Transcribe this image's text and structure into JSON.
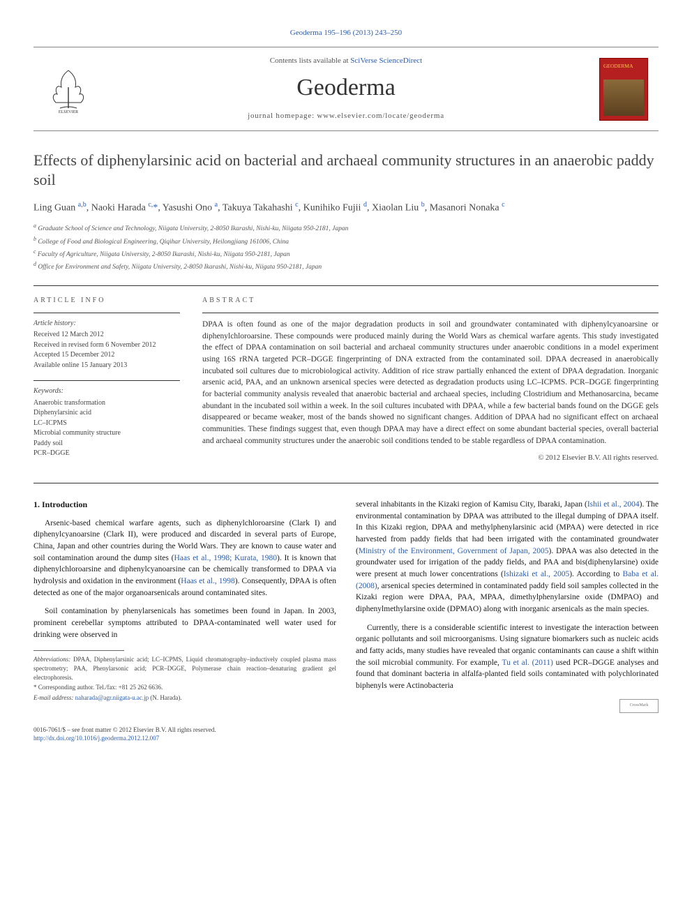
{
  "header": {
    "citation": "Geoderma 195–196 (2013) 243–250",
    "contents_prefix": "Contents lists available at ",
    "contents_link": "SciVerse ScienceDirect",
    "journal": "Geoderma",
    "homepage": "journal homepage: www.elsevier.com/locate/geoderma",
    "cover_title": "GEODERMA"
  },
  "article": {
    "title": "Effects of diphenylarsinic acid on bacterial and archaeal community structures in an anaerobic paddy soil",
    "authors_html": "Ling Guan <sup>a,b</sup>, Naoki Harada <sup>c,</sup><span class='corr'>*</span>, Yasushi Ono <sup>a</sup>, Takuya Takahashi <sup>c</sup>, Kunihiko Fujii <sup>d</sup>, Xiaolan Liu <sup>b</sup>, Masanori Nonaka <sup>c</sup>",
    "affiliations": [
      "a Graduate School of Science and Technology, Niigata University, 2-8050 Ikarashi, Nishi-ku, Niigata 950-2181, Japan",
      "b College of Food and Biological Engineering, Qiqihar University, Heilongjiang 161006, China",
      "c Faculty of Agriculture, Niigata University, 2-8050 Ikarashi, Nishi-ku, Niigata 950-2181, Japan",
      "d Office for Environment and Safety, Niigata University, 2-8050 Ikarashi, Nishi-ku, Niigata 950-2181, Japan"
    ]
  },
  "info": {
    "heading": "ARTICLE INFO",
    "history_label": "Article history:",
    "history": [
      "Received 12 March 2012",
      "Received in revised form 6 November 2012",
      "Accepted 15 December 2012",
      "Available online 15 January 2013"
    ],
    "keywords_label": "Keywords:",
    "keywords": [
      "Anaerobic transformation",
      "Diphenylarsinic acid",
      "LC–ICPMS",
      "Microbial community structure",
      "Paddy soil",
      "PCR–DGGE"
    ]
  },
  "abstract": {
    "heading": "ABSTRACT",
    "text": "DPAA is often found as one of the major degradation products in soil and groundwater contaminated with diphenylcyanoarsine or diphenylchloroarsine. These compounds were produced mainly during the World Wars as chemical warfare agents. This study investigated the effect of DPAA contamination on soil bacterial and archaeal community structures under anaerobic conditions in a model experiment using 16S rRNA targeted PCR–DGGE fingerprinting of DNA extracted from the contaminated soil. DPAA decreased in anaerobically incubated soil cultures due to microbiological activity. Addition of rice straw partially enhanced the extent of DPAA degradation. Inorganic arsenic acid, PAA, and an unknown arsenical species were detected as degradation products using LC–ICPMS. PCR–DGGE fingerprinting for bacterial community analysis revealed that anaerobic bacterial and archaeal species, including Clostridium and Methanosarcina, became abundant in the incubated soil within a week. In the soil cultures incubated with DPAA, while a few bacterial bands found on the DGGE gels disappeared or became weaker, most of the bands showed no significant changes. Addition of DPAA had no significant effect on archaeal communities. These findings suggest that, even though DPAA may have a direct effect on some abundant bacterial species, overall bacterial and archaeal community structures under the anaerobic soil conditions tended to be stable regardless of DPAA contamination.",
    "copyright": "© 2012 Elsevier B.V. All rights reserved."
  },
  "body": {
    "section_heading": "1. Introduction",
    "left_paragraphs": [
      "Arsenic-based chemical warfare agents, such as diphenylchloroarsine (Clark I) and diphenylcyanoarsine (Clark II), were produced and discarded in several parts of Europe, China, Japan and other countries during the World Wars. They are known to cause water and soil contamination around the dump sites (<span class='ref-link'>Haas et al., 1998; Kurata, 1980</span>). It is known that diphenylchloroarsine and diphenylcyanoarsine can be chemically transformed to DPAA via hydrolysis and oxidation in the environment (<span class='ref-link'>Haas et al., 1998</span>). Consequently, DPAA is often detected as one of the major organoarsenicals around contaminated sites.",
      "Soil contamination by phenylarsenicals has sometimes been found in Japan. In 2003, prominent cerebellar symptoms attributed to DPAA-contaminated well water used for drinking were observed in"
    ],
    "right_paragraphs": [
      "several inhabitants in the Kizaki region of Kamisu City, Ibaraki, Japan (<span class='ref-link'>Ishii et al., 2004</span>). The environmental contamination by DPAA was attributed to the illegal dumping of DPAA itself. In this Kizaki region, DPAA and methylphenylarsinic acid (MPAA) were detected in rice harvested from paddy fields that had been irrigated with the contaminated groundwater (<span class='ref-link'>Ministry of the Environment, Government of Japan, 2005</span>). DPAA was also detected in the groundwater used for irrigation of the paddy fields, and PAA and bis(diphenylarsine) oxide were present at much lower concentrations (<span class='ref-link'>Ishizaki et al., 2005</span>). According to <span class='ref-link'>Baba et al. (2008)</span>, arsenical species determined in contaminated paddy field soil samples collected in the Kizaki region were DPAA, PAA, MPAA, dimethylphenylarsine oxide (DMPAO) and diphenylmethylarsine oxide (DPMAO) along with inorganic arsenicals as the main species.",
      "Currently, there is a considerable scientific interest to investigate the interaction between organic pollutants and soil microorganisms. Using signature biomarkers such as nucleic acids and fatty acids, many studies have revealed that organic contaminants can cause a shift within the soil microbial community. For example, <span class='ref-link'>Tu et al. (2011)</span> used PCR–DGGE analyses and found that dominant bacteria in alfalfa-planted field soils contaminated with polychlorinated biphenyls were Actinobacteria"
    ]
  },
  "footnotes": {
    "abbrev_label": "Abbreviations:",
    "abbrev": " DPAA, Diphenylarsinic acid; LC–ICPMS, Liquid chromatography–inductively coupled plasma mass spectrometry; PAA, Phenylarsonic acid; PCR–DGGE, Polymerase chain reaction–denaturing gradient gel electrophoresis.",
    "corr": "* Corresponding author. Tel./fax: +81 25 262 6636.",
    "email_label": "E-mail address: ",
    "email": "naharada@agr.niigata-u.ac.jp",
    "email_suffix": " (N. Harada)."
  },
  "footer": {
    "left_line1": "0016-7061/$ – see front matter © 2012 Elsevier B.V. All rights reserved.",
    "left_doi": "http://dx.doi.org/10.1016/j.geoderma.2012.12.007",
    "crossmark": "CrossMark"
  },
  "colors": {
    "link": "#2a5db0",
    "cover_bg": "#b51f1f",
    "cover_title": "#f4d040",
    "text": "#1a1a1a",
    "muted": "#555"
  }
}
